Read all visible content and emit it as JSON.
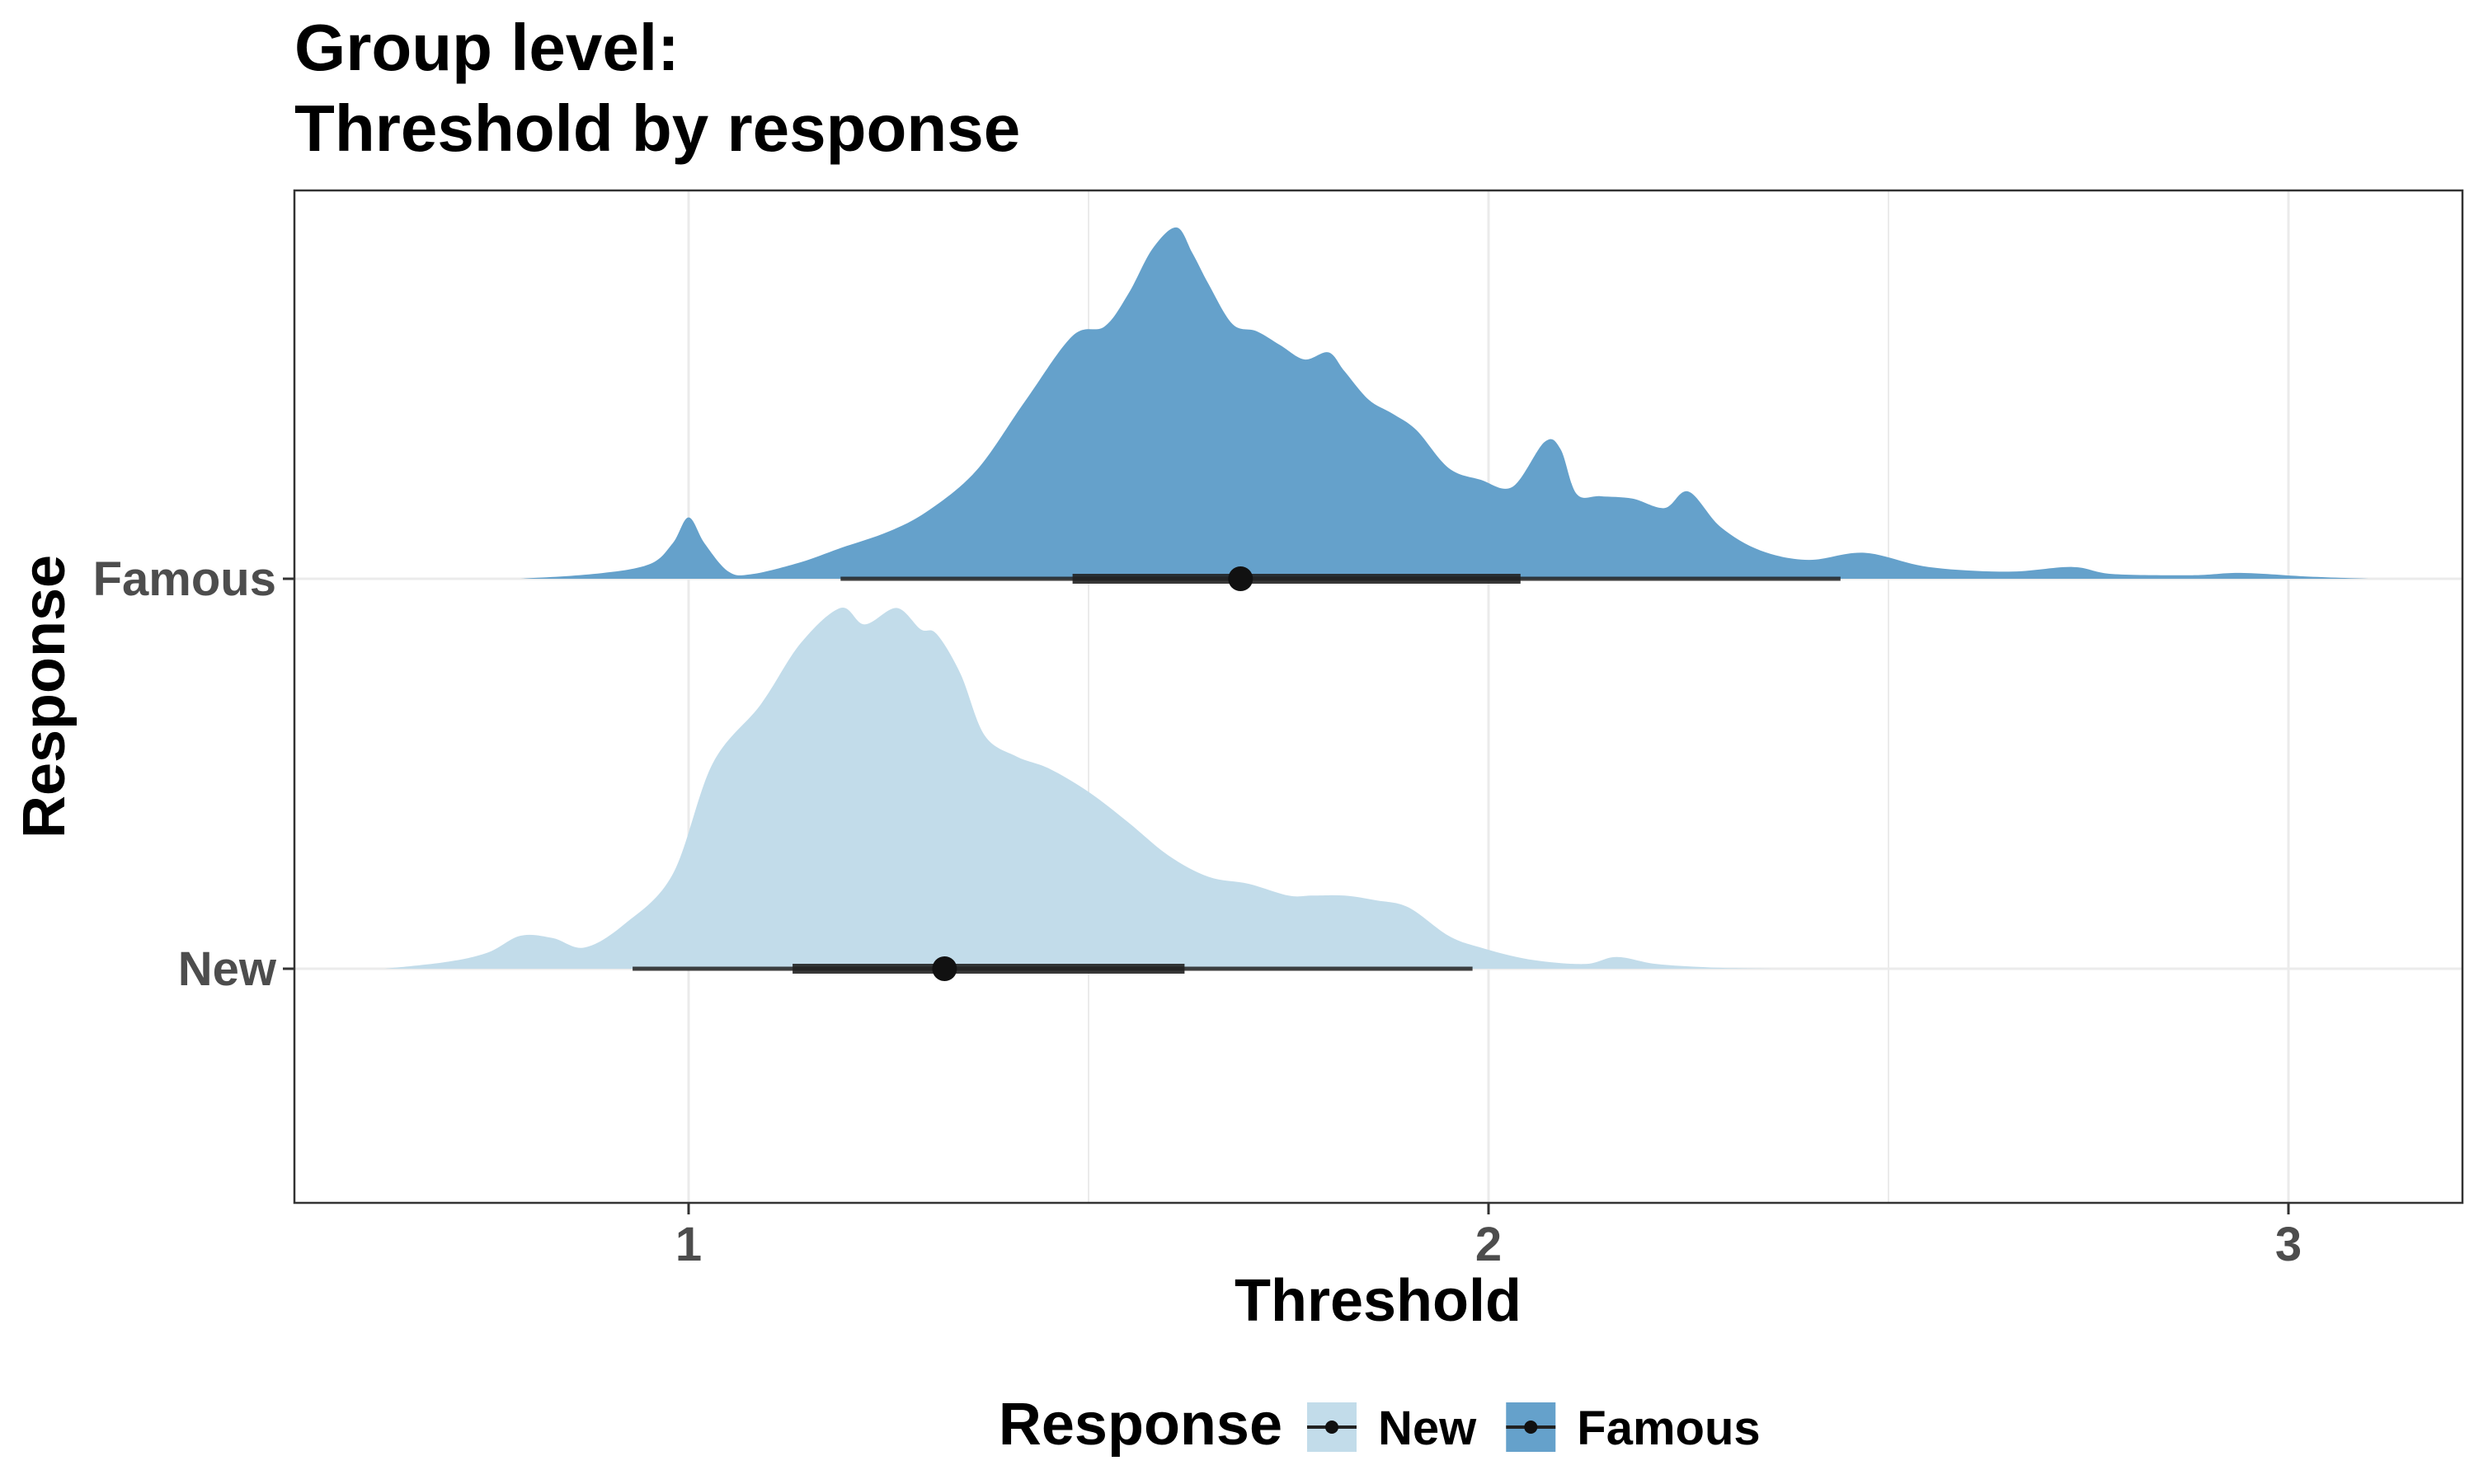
{
  "chart_data": {
    "type": "area",
    "subtype": "halfeye-density",
    "title": [
      "Group level:",
      "Threshold by response"
    ],
    "xlabel": "Threshold",
    "ylabel": "Response",
    "xlim": [
      0.5,
      3.2
    ],
    "x_ticks": [
      1,
      2,
      3
    ],
    "y_categories": [
      "New",
      "Famous"
    ],
    "grid": true,
    "legend": {
      "title": "Response",
      "position": "bottom",
      "entries": [
        "New",
        "Famous"
      ]
    },
    "colors": {
      "New": "#c2dcea",
      "Famous": "#65a1cb",
      "interval": "#222222",
      "grid": "#ebebeb",
      "panel_border": "#333333"
    },
    "series": [
      {
        "name": "Famous",
        "point": 1.69,
        "interval_66": [
          1.48,
          2.04
        ],
        "interval_95": [
          1.19,
          2.44
        ],
        "density_x": [
          0.79,
          0.88,
          0.95,
          0.98,
          1.0,
          1.02,
          1.05,
          1.08,
          1.14,
          1.19,
          1.25,
          1.3,
          1.36,
          1.42,
          1.48,
          1.52,
          1.55,
          1.58,
          1.61,
          1.63,
          1.65,
          1.68,
          1.71,
          1.74,
          1.77,
          1.8,
          1.82,
          1.85,
          1.88,
          1.91,
          1.95,
          1.99,
          2.03,
          2.07,
          2.09,
          2.11,
          2.14,
          2.18,
          2.22,
          2.25,
          2.29,
          2.34,
          2.4,
          2.47,
          2.55,
          2.65,
          2.73,
          2.78,
          2.88,
          2.94,
          3.02,
          3.1
        ],
        "density": [
          0.0,
          0.02,
          0.06,
          0.15,
          0.26,
          0.15,
          0.03,
          0.02,
          0.07,
          0.13,
          0.2,
          0.29,
          0.46,
          0.75,
          1.03,
          1.07,
          1.21,
          1.4,
          1.49,
          1.38,
          1.25,
          1.08,
          1.05,
          0.99,
          0.93,
          0.96,
          0.88,
          0.76,
          0.7,
          0.63,
          0.47,
          0.42,
          0.39,
          0.58,
          0.55,
          0.36,
          0.35,
          0.34,
          0.3,
          0.37,
          0.22,
          0.12,
          0.08,
          0.11,
          0.05,
          0.03,
          0.05,
          0.02,
          0.015,
          0.025,
          0.01,
          0.0
        ]
      },
      {
        "name": "New",
        "point": 1.32,
        "interval_66": [
          1.13,
          1.62
        ],
        "interval_95": [
          0.93,
          1.98
        ],
        "density_x": [
          0.62,
          0.7,
          0.75,
          0.79,
          0.83,
          0.87,
          0.92,
          0.98,
          1.03,
          1.09,
          1.14,
          1.19,
          1.22,
          1.26,
          1.29,
          1.31,
          1.34,
          1.37,
          1.41,
          1.45,
          1.5,
          1.55,
          1.6,
          1.65,
          1.7,
          1.75,
          1.78,
          1.82,
          1.86,
          1.9,
          1.95,
          1.99,
          2.05,
          2.12,
          2.16,
          2.21,
          2.28,
          2.36
        ],
        "density": [
          0.0,
          0.03,
          0.07,
          0.14,
          0.13,
          0.09,
          0.19,
          0.4,
          0.87,
          1.12,
          1.38,
          1.53,
          1.46,
          1.53,
          1.44,
          1.42,
          1.25,
          0.99,
          0.9,
          0.85,
          0.75,
          0.62,
          0.48,
          0.39,
          0.36,
          0.31,
          0.31,
          0.31,
          0.29,
          0.26,
          0.14,
          0.09,
          0.04,
          0.02,
          0.05,
          0.02,
          0.005,
          0.0
        ]
      }
    ]
  }
}
